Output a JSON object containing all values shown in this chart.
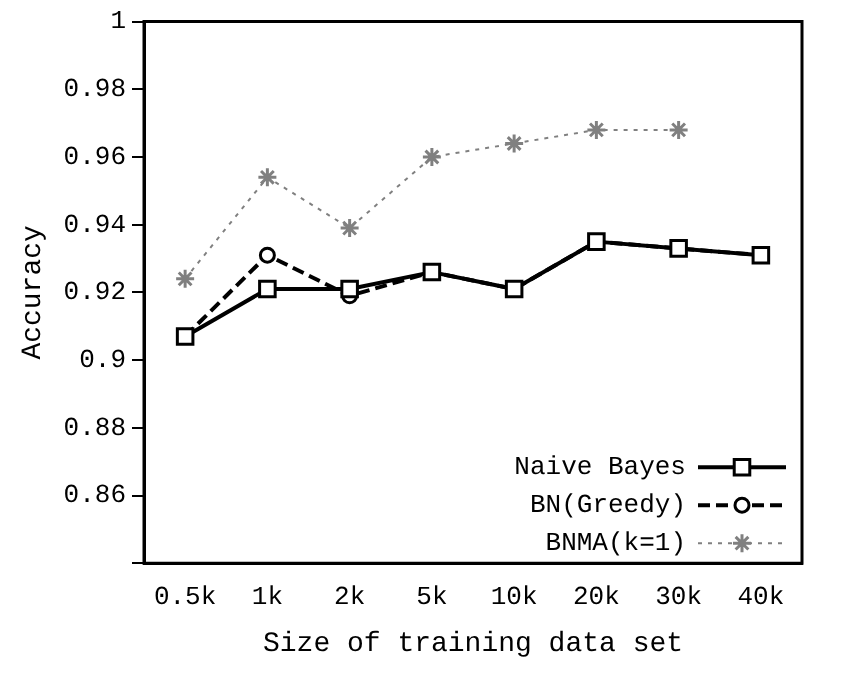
{
  "chart_data": {
    "type": "line",
    "xlabel": "Size of training data set",
    "ylabel": "Accuracy",
    "categories": [
      "0.5k",
      "1k",
      "2k",
      "5k",
      "10k",
      "20k",
      "30k",
      "40k"
    ],
    "ylim": [
      0.84,
      1
    ],
    "yticks": [
      {
        "value": 0.84,
        "label": null
      },
      0.86,
      0.88,
      0.9,
      0.92,
      0.94,
      0.96,
      0.98,
      1
    ],
    "grid": false,
    "legend": "bottom right",
    "series": [
      {
        "name": "Naive Bayes",
        "color": "#000000",
        "marker": "square",
        "line_style": "solid",
        "values": [
          0.907,
          0.921,
          0.921,
          0.926,
          0.921,
          0.935,
          0.933,
          0.931
        ]
      },
      {
        "name": "BN(Greedy)",
        "color": "#000000",
        "marker": "circle",
        "line_style": "dashed",
        "values": [
          0.907,
          0.931,
          0.919,
          0.926,
          0.921,
          0.935,
          0.933,
          0.931
        ]
      },
      {
        "name": "BNMA(k=1)",
        "color": "#808080",
        "marker": "cross",
        "line_style": "dotted",
        "values": [
          0.924,
          0.954,
          0.939,
          0.96,
          0.964,
          0.968,
          0.968,
          null
        ]
      }
    ]
  }
}
